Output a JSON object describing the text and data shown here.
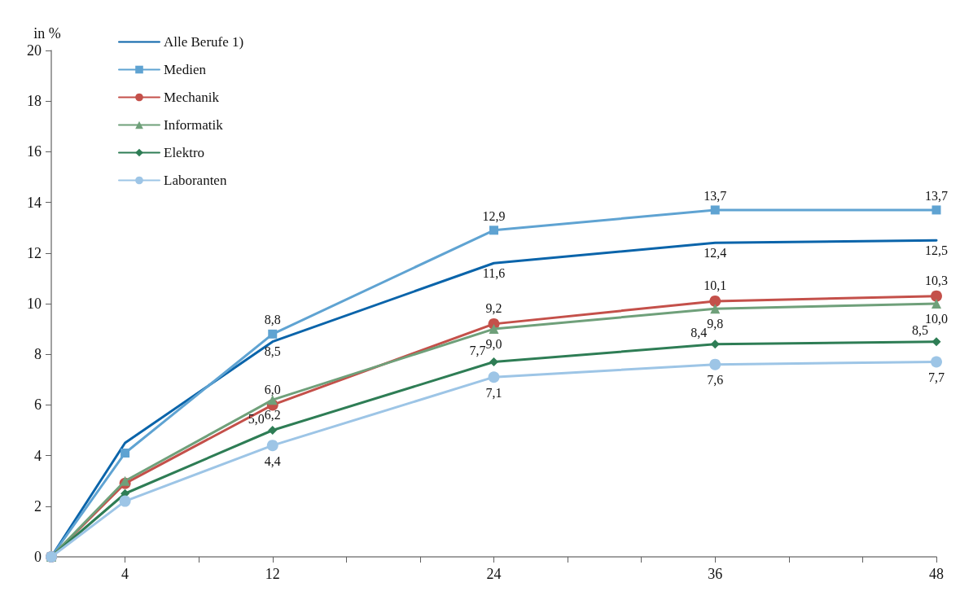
{
  "chart_data": {
    "type": "line",
    "ylabel": "in %",
    "x": [
      0,
      4,
      12,
      24,
      36,
      48
    ],
    "xlim": [
      0,
      48
    ],
    "xticks": [
      {
        "value": 0,
        "label": null
      },
      {
        "value": 4,
        "label": "4"
      },
      {
        "value": 8,
        "label": null
      },
      {
        "value": 12,
        "label": "12"
      },
      {
        "value": 16,
        "label": null
      },
      {
        "value": 20,
        "label": null
      },
      {
        "value": 24,
        "label": "24"
      },
      {
        "value": 28,
        "label": null
      },
      {
        "value": 32,
        "label": null
      },
      {
        "value": 36,
        "label": "36"
      },
      {
        "value": 40,
        "label": null
      },
      {
        "value": 44,
        "label": null
      },
      {
        "value": 48,
        "label": "48"
      }
    ],
    "ylim": [
      0,
      20
    ],
    "yticks": [
      0,
      2,
      4,
      6,
      8,
      10,
      12,
      14,
      16,
      18,
      20
    ],
    "grid": false,
    "legend": "top left",
    "series": [
      {
        "name": "Alle Berufe 1)",
        "color": "#0a64aa",
        "marker": "none",
        "values": [
          0,
          4.5,
          8.5,
          11.6,
          12.4,
          12.5
        ],
        "value_labels": [
          null,
          null,
          "8,5",
          "11,6",
          "12,4",
          "12,5"
        ]
      },
      {
        "name": "Medien",
        "color": "#5fa3d2",
        "marker": "square",
        "values": [
          0,
          4.1,
          8.8,
          12.9,
          13.7,
          13.7
        ],
        "value_labels": [
          null,
          null,
          "8,8",
          "12,9",
          "13,7",
          "13,7"
        ]
      },
      {
        "name": "Mechanik",
        "color": "#c4504a",
        "marker": "circle",
        "values": [
          0,
          2.9,
          6.0,
          9.2,
          10.1,
          10.3
        ],
        "value_labels": [
          null,
          null,
          "6,0",
          "9,2",
          "10,1",
          "10,3"
        ]
      },
      {
        "name": "Informatik",
        "color": "#6fa07a",
        "marker": "triangle",
        "values": [
          0,
          3.0,
          6.2,
          9.0,
          9.8,
          10.0
        ],
        "value_labels": [
          null,
          null,
          "6,2",
          "9,0",
          "9,8",
          "10,0"
        ]
      },
      {
        "name": "Elektro",
        "color": "#2e7d55",
        "marker": "diamond",
        "values": [
          0,
          2.5,
          5.0,
          7.7,
          8.4,
          8.5
        ],
        "value_labels": [
          null,
          null,
          "5,0",
          "7,7",
          "8,4",
          "8,5"
        ]
      },
      {
        "name": "Laboranten",
        "color": "#9dc5e6",
        "marker": "circle",
        "values": [
          0,
          2.2,
          4.4,
          7.1,
          7.6,
          7.7
        ],
        "value_labels": [
          null,
          null,
          "4,4",
          "7,1",
          "7,6",
          "7,7"
        ]
      }
    ]
  }
}
